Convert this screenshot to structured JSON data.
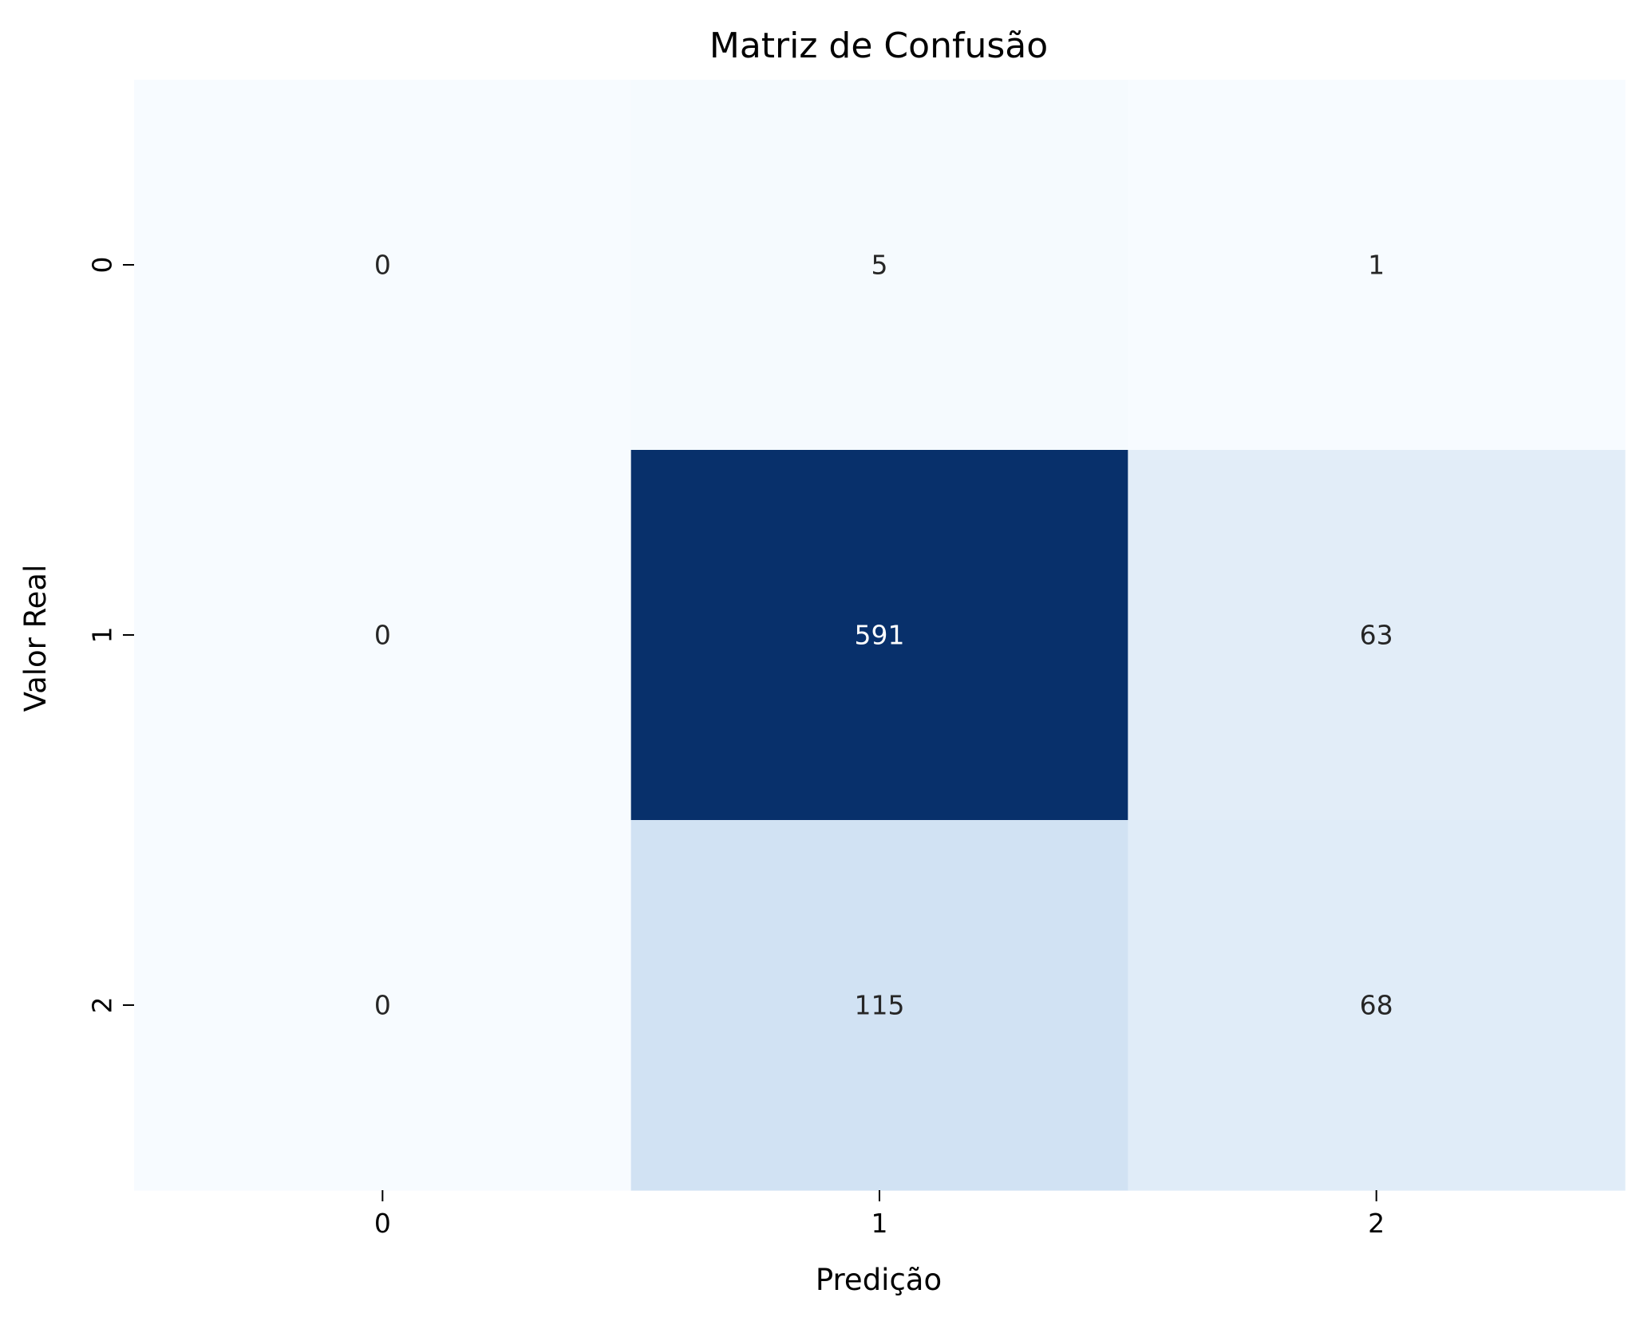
{
  "chart_data": {
    "type": "heatmap",
    "title": "Matriz de Confusão",
    "xlabel": "Predição",
    "ylabel": "Valor Real",
    "x_categories": [
      "0",
      "1",
      "2"
    ],
    "y_categories": [
      "0",
      "1",
      "2"
    ],
    "values": [
      [
        0,
        5,
        1
      ],
      [
        0,
        591,
        63
      ],
      [
        0,
        115,
        68
      ]
    ],
    "colormap": "Blues",
    "colorbar": false,
    "annotations": true
  }
}
